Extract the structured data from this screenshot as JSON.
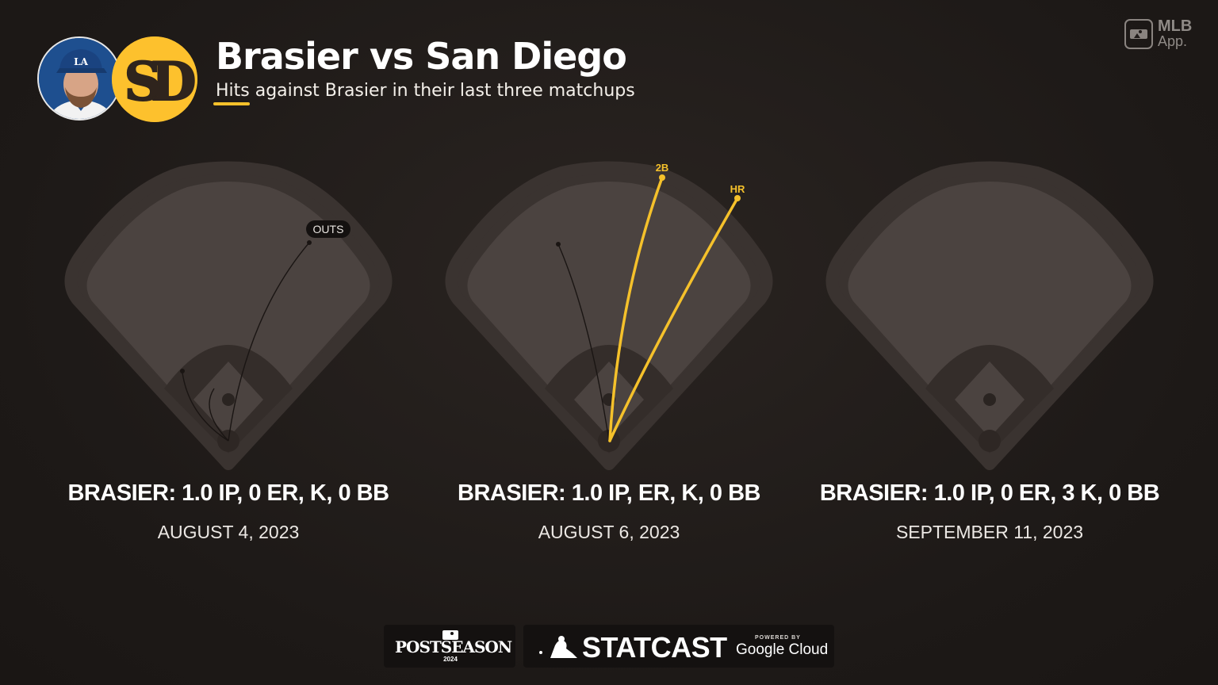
{
  "header": {
    "title": "Brasier vs San Diego",
    "subtitle": "Hits against Brasier in their last three matchups",
    "team_logo_text": "SD",
    "player_cap_text": "LA"
  },
  "brand": {
    "app_line1": "MLB",
    "app_line2": "App."
  },
  "colors": {
    "background": "#211c1a",
    "field": "#4b4340",
    "field_halo": "#3a3330",
    "infield": "#342d2a",
    "hit_trace": "#f5c12b",
    "out_trace": "#1a1513",
    "padres_gold": "#fdc12d",
    "padres_brown": "#2f241d",
    "dodgers_blue": "#1e4f8f"
  },
  "matchups": [
    {
      "stat_line": "BRASIER: 1.0 IP, 0 ER, K, 0 BB",
      "date": "AUGUST 4, 2023",
      "legend_label": "OUTS",
      "hits": [],
      "outs": 3
    },
    {
      "stat_line": "BRASIER: 1.0 IP, ER, K, 0 BB",
      "date": "AUGUST 6, 2023",
      "hits": [
        {
          "label": "2B",
          "type": "double"
        },
        {
          "label": "HR",
          "type": "home run"
        }
      ],
      "outs": 1
    },
    {
      "stat_line": "BRASIER: 1.0 IP, 0 ER, 3 K, 0 BB",
      "date": "SEPTEMBER 11, 2023",
      "hits": [],
      "outs": 0
    }
  ],
  "footer": {
    "postseason": "POSTSEASON",
    "postseason_year": "2024",
    "statcast": "STATCAST",
    "powered_by": "POWERED BY",
    "google_cloud": "Google Cloud"
  }
}
